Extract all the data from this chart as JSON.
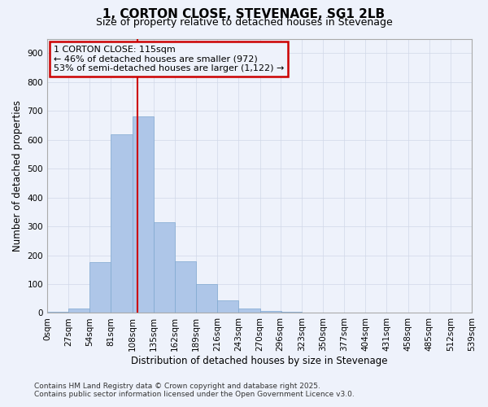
{
  "title": "1, CORTON CLOSE, STEVENAGE, SG1 2LB",
  "subtitle": "Size of property relative to detached houses in Stevenage",
  "xlabel": "Distribution of detached houses by size in Stevenage",
  "ylabel": "Number of detached properties",
  "annotation_line1": "1 CORTON CLOSE: 115sqm",
  "annotation_line2": "← 46% of detached houses are smaller (972)",
  "annotation_line3": "53% of semi-detached houses are larger (1,122) →",
  "property_size_sqm": 115,
  "bin_edges": [
    0,
    27,
    54,
    81,
    108,
    135,
    162,
    189,
    216,
    243,
    270,
    296,
    323,
    350,
    377,
    404,
    431,
    458,
    485,
    512,
    539
  ],
  "bar_values": [
    5,
    15,
    175,
    620,
    680,
    313,
    178,
    100,
    43,
    15,
    8,
    3,
    1,
    1,
    0,
    0,
    0,
    0,
    0,
    0
  ],
  "bar_color": "#aec6e8",
  "bar_edge_color": "#7fa8d0",
  "grid_color": "#d0d8e8",
  "annotation_box_color": "#cc0000",
  "property_line_color": "#cc0000",
  "background_color": "#eef2fb",
  "ylim": [
    0,
    950
  ],
  "yticks": [
    0,
    100,
    200,
    300,
    400,
    500,
    600,
    700,
    800,
    900
  ],
  "footnote1": "Contains HM Land Registry data © Crown copyright and database right 2025.",
  "footnote2": "Contains public sector information licensed under the Open Government Licence v3.0."
}
